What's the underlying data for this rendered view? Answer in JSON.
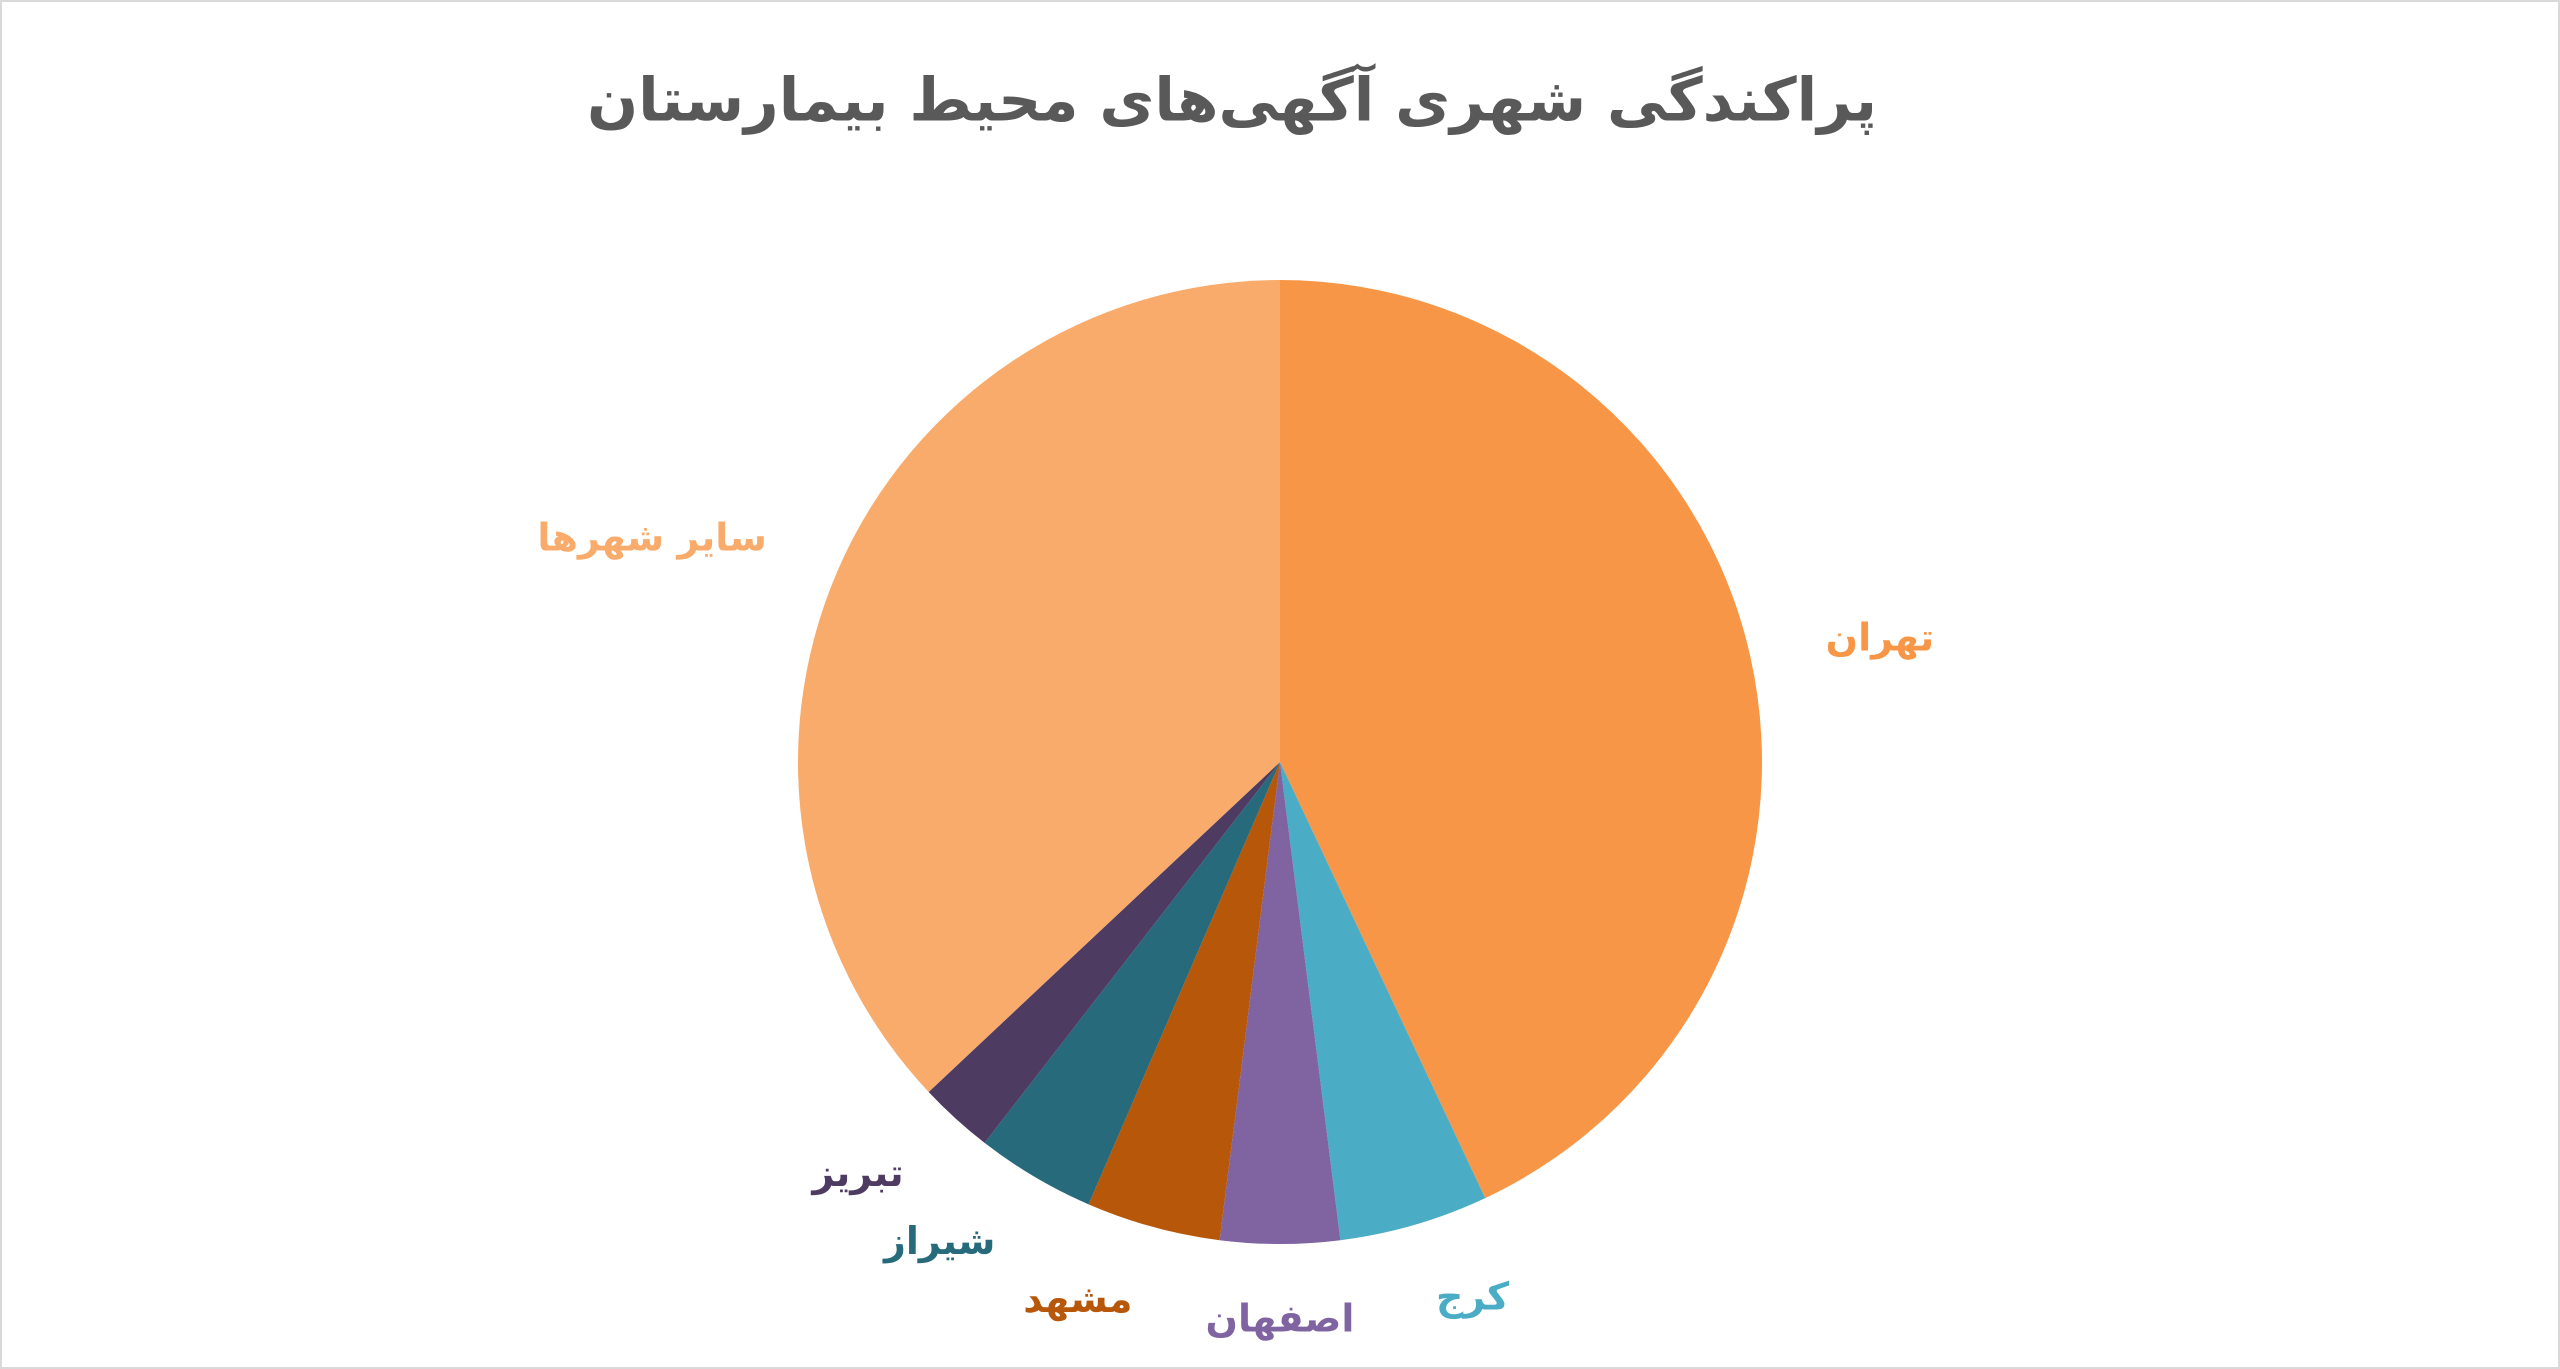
{
  "chart_data": {
    "type": "pie",
    "title": "پراکندگی شهری آگهی‌های محیط بیمارستان",
    "categories": [
      "تهران",
      "کرج",
      "اصفهان",
      "مشهد",
      "شیراز",
      "تبریز",
      "سایر شهرها"
    ],
    "values": [
      43,
      5,
      4,
      4.5,
      4,
      2.5,
      37
    ],
    "colors": [
      "#f79646",
      "#4bacc6",
      "#8064a2",
      "#b7570a",
      "#276a7c",
      "#4e3b62",
      "#f8ab6a"
    ]
  }
}
